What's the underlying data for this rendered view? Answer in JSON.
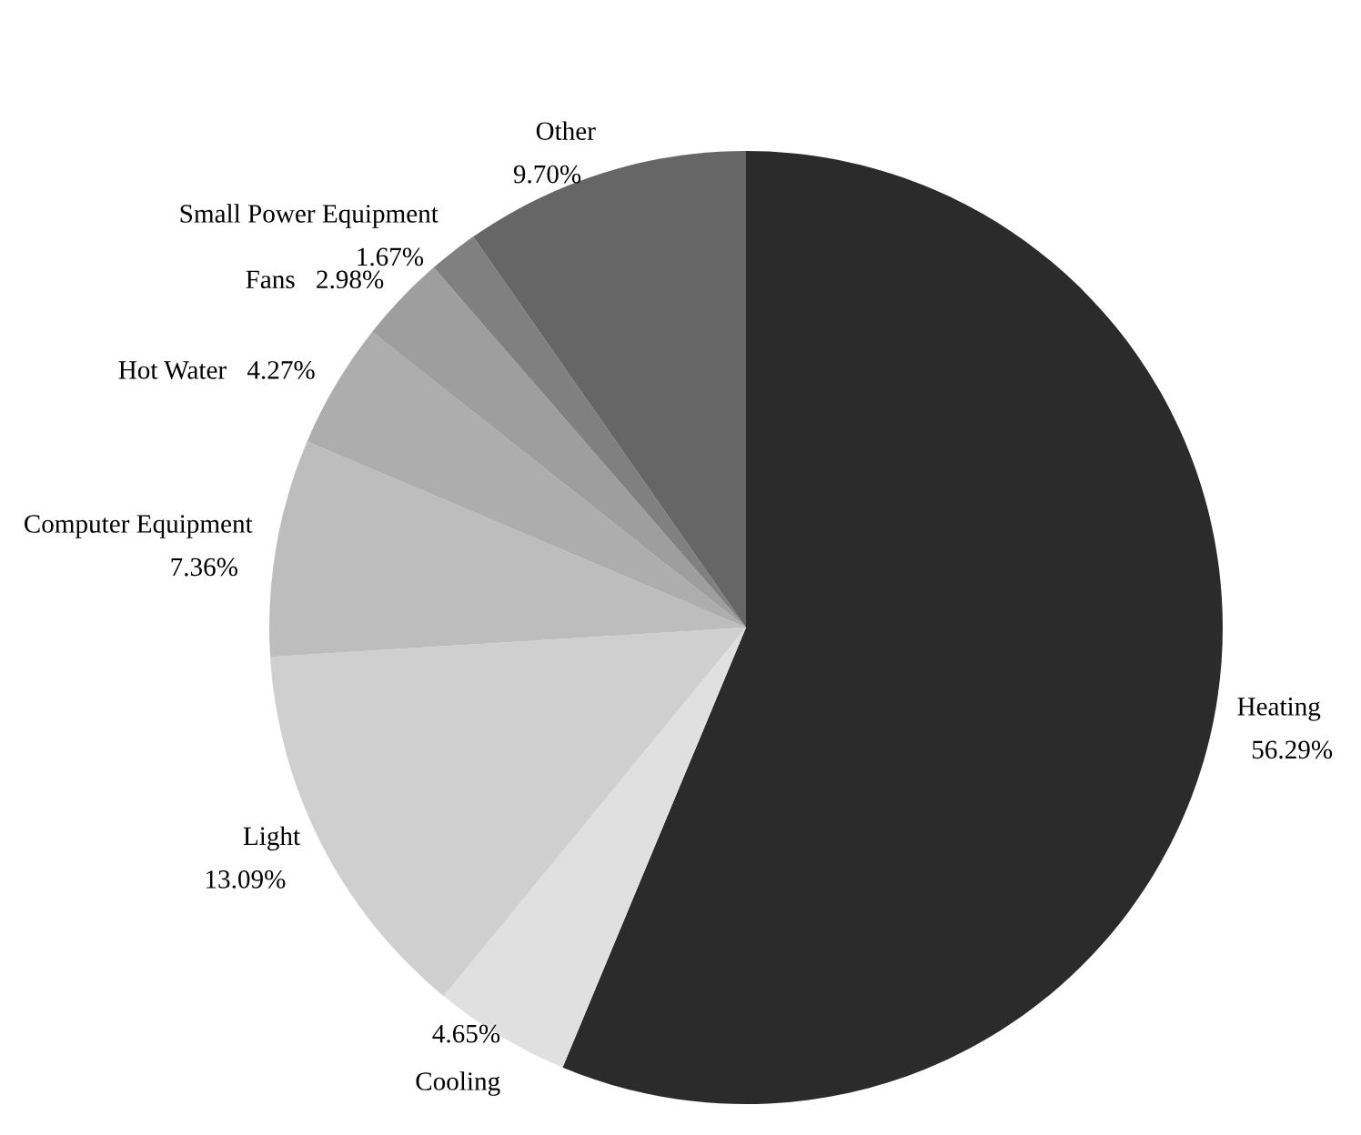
{
  "chart_data": {
    "type": "pie",
    "categories": [
      "Heating",
      "Cooling",
      "Light",
      "Computer Equipment",
      "Hot Water",
      "Fans",
      "Small Power Equipment",
      "Other"
    ],
    "values": [
      56.29,
      4.65,
      13.09,
      7.36,
      4.27,
      2.98,
      1.67,
      9.7
    ],
    "value_labels": [
      "56.29%",
      "4.65%",
      "13.09%",
      "7.36%",
      "4.27%",
      "2.98%",
      "1.67%",
      "9.70%"
    ],
    "colors": [
      "#2b2b2b",
      "#e0e0e0",
      "#cfcfcf",
      "#bdbdbd",
      "#adadad",
      "#9e9e9e",
      "#808080",
      "#666666"
    ],
    "legend": false
  }
}
